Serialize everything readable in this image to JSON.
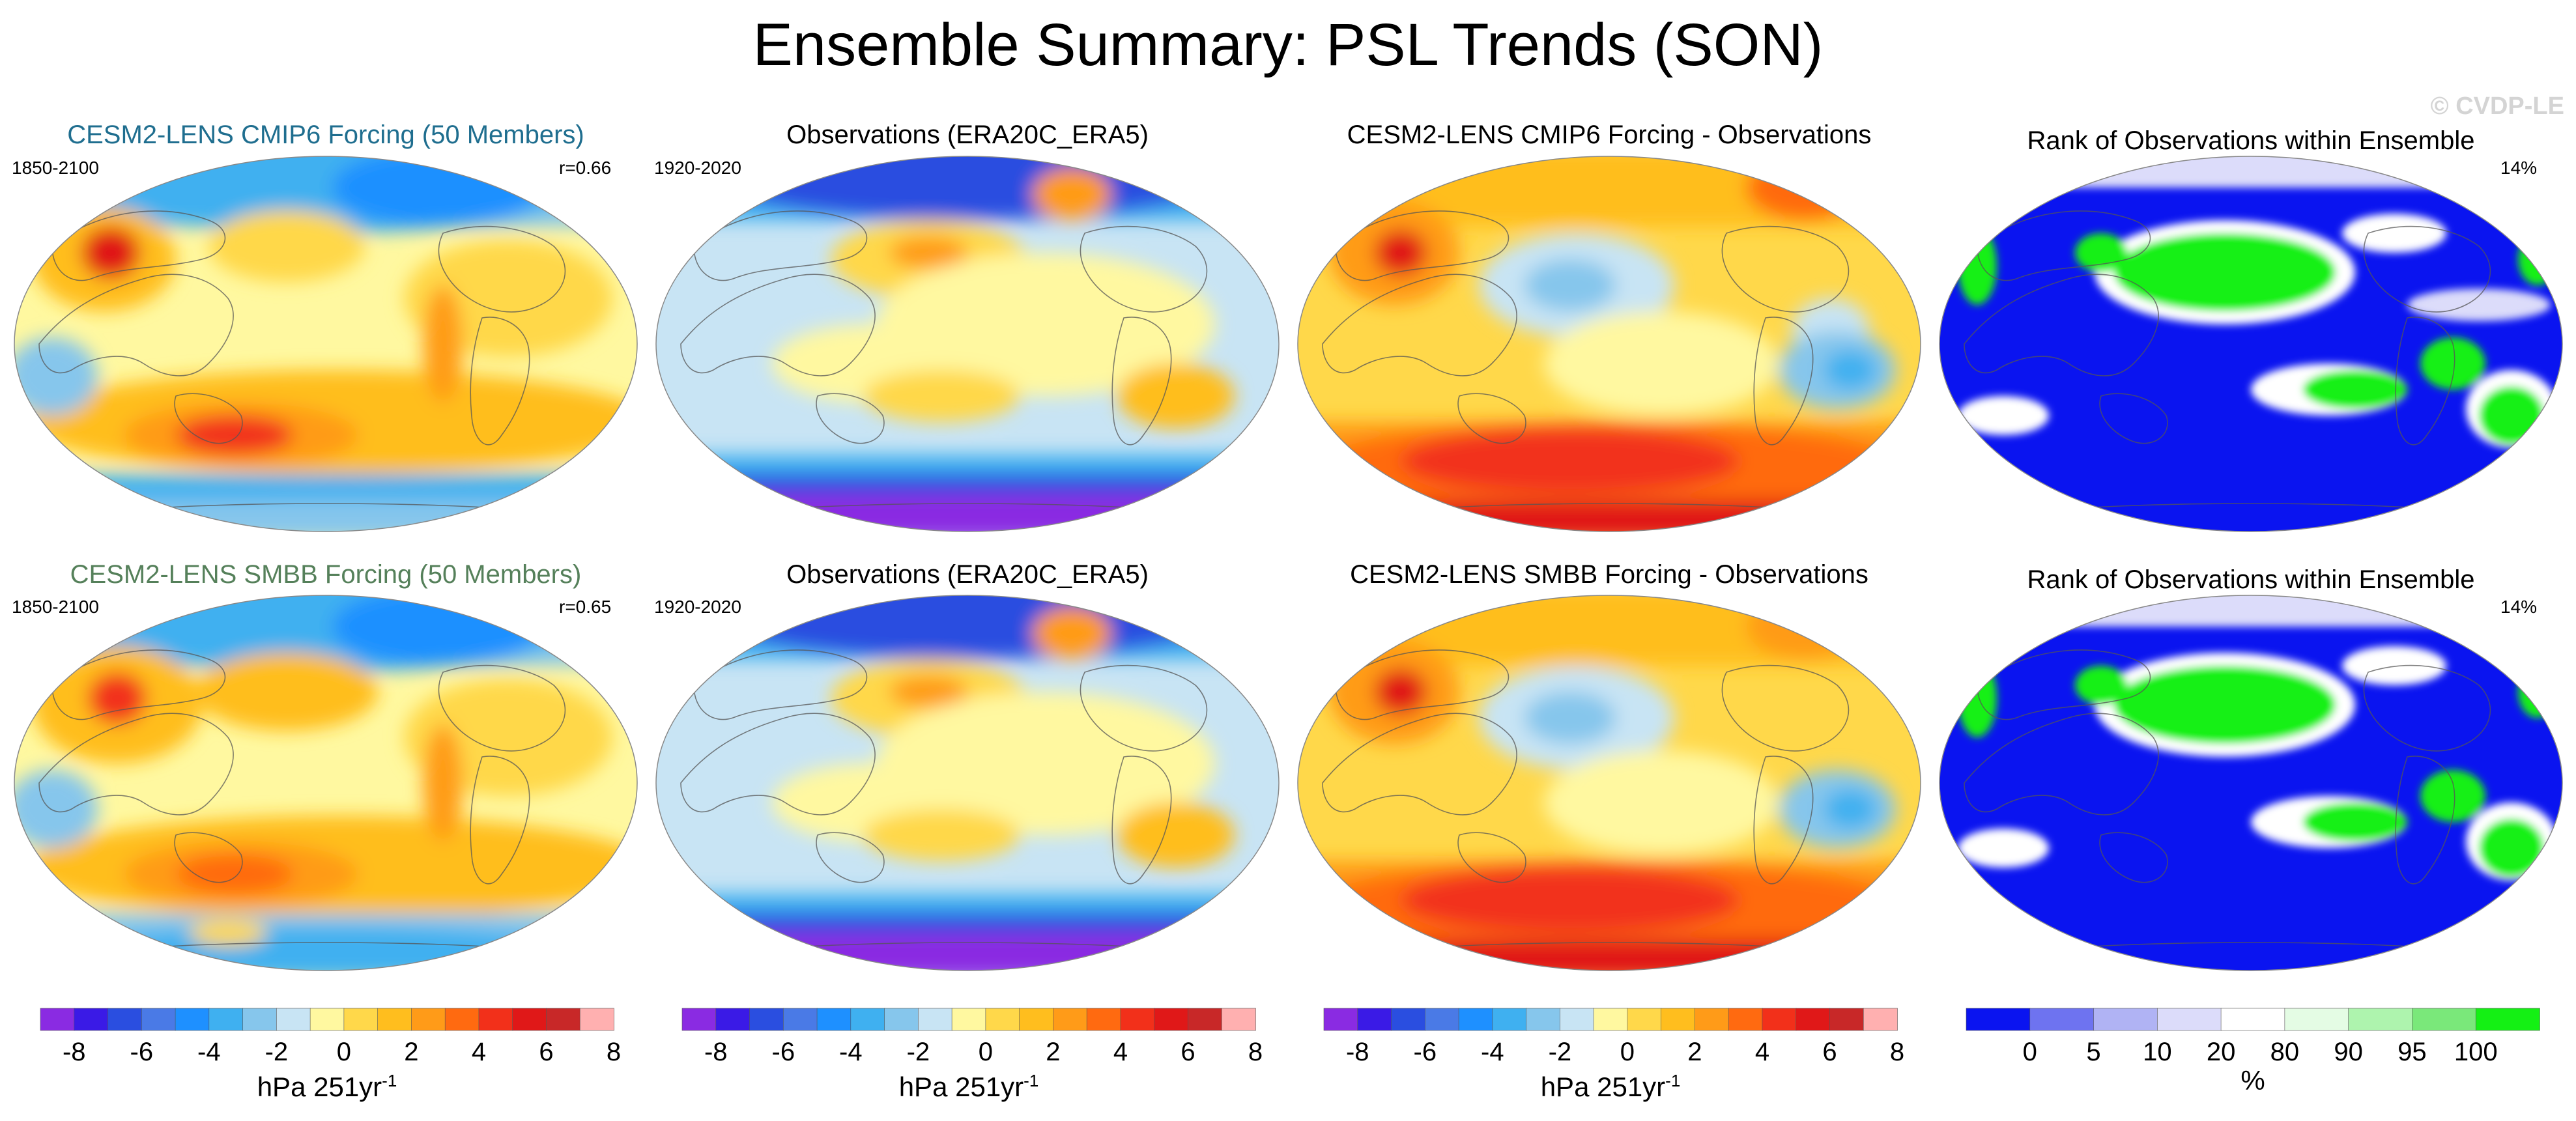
{
  "title": "Ensemble Summary: PSL Trends (SON)",
  "watermark": "© CVDP-LE",
  "rows": [
    {
      "ensemble": {
        "title": "CESM2-LENS CMIP6 Forcing (50 Members)",
        "years": "1850-2100",
        "corr": "r=0.66"
      },
      "obs": {
        "title": "Observations (ERA20C_ERA5)",
        "years": "1920-2020"
      },
      "diff": {
        "title": "CESM2-LENS CMIP6 Forcing - Observations"
      },
      "rank": {
        "title": "Rank of Observations within Ensemble",
        "percent": "14%"
      }
    },
    {
      "ensemble": {
        "title": "CESM2-LENS SMBB Forcing (50 Members)",
        "years": "1850-2100",
        "corr": "r=0.65"
      },
      "obs": {
        "title": "Observations (ERA20C_ERA5)",
        "years": "1920-2020"
      },
      "diff": {
        "title": "CESM2-LENS SMBB Forcing - Observations"
      },
      "rank": {
        "title": "Rank of Observations within Ensemble",
        "percent": "14%"
      }
    }
  ],
  "trend_colorbar": {
    "ticks": [
      "-8",
      "-6",
      "-4",
      "-2",
      "0",
      "2",
      "4",
      "6",
      "8"
    ],
    "unit": "hPa 251yr",
    "unit_exp": "-1",
    "colors": [
      "#8a2be2",
      "#3a1ae6",
      "#2a4ee0",
      "#4a7ae6",
      "#1e90ff",
      "#3fb0f0",
      "#86c6ec",
      "#c8e4f4",
      "#fff8a0",
      "#ffd84a",
      "#ffbe1e",
      "#ff9b18",
      "#ff6a10",
      "#f2301a",
      "#e01818",
      "#c82828",
      "#ffb0b0"
    ]
  },
  "rank_colorbar": {
    "ticks": [
      "0",
      "5",
      "10",
      "20",
      "80",
      "90",
      "95",
      "100"
    ],
    "unit": "%",
    "colors": [
      "#0a14f0",
      "#6e73f0",
      "#b0b3f4",
      "#dcdcfa",
      "#ffffff",
      "#e4fce4",
      "#aef4ae",
      "#7ae87a",
      "#14f014"
    ]
  }
}
